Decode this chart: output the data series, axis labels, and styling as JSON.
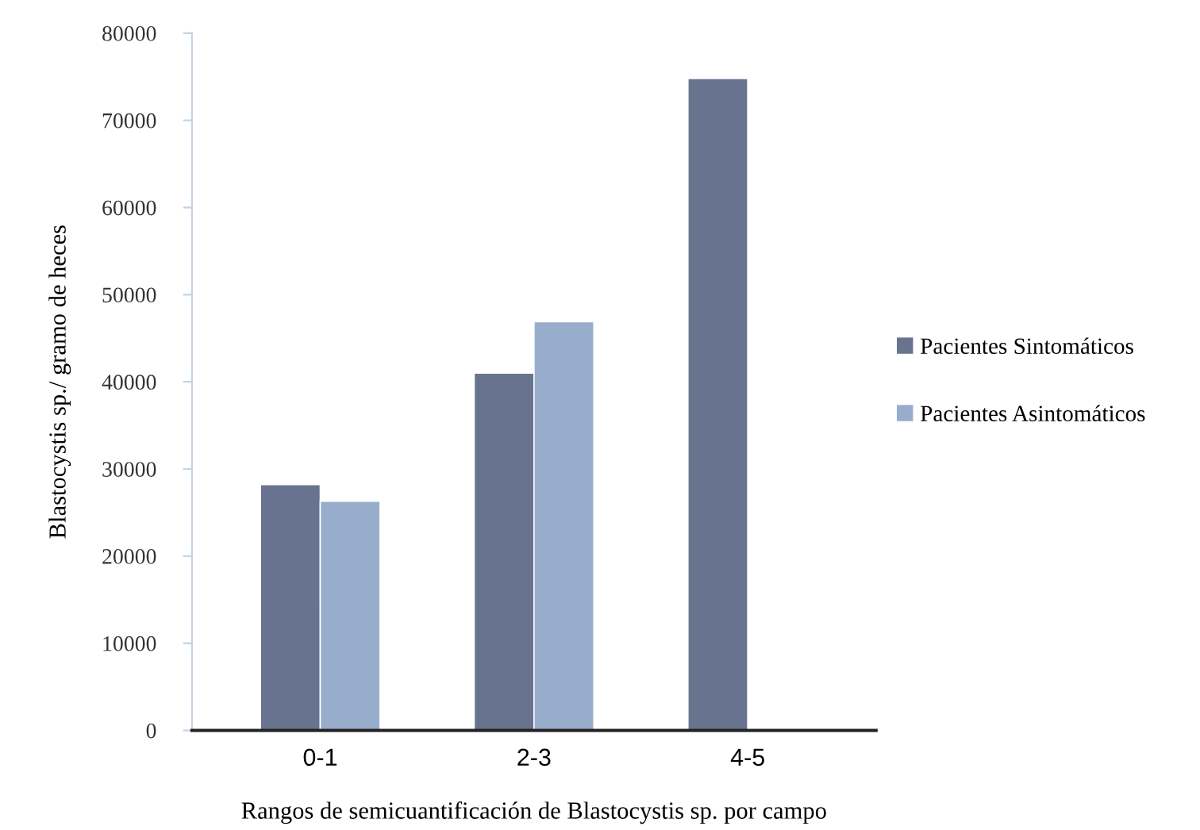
{
  "chart_data": {
    "type": "bar",
    "xlabel": "Rangos de semicuantificación de Blastocystis sp. por campo",
    "ylabel": "Blastocystis sp./ gramo de heces",
    "categories": [
      "0-1",
      "2-3",
      "4-5"
    ],
    "series": [
      {
        "name": "Pacientes Sintomáticos",
        "color": "#68738f",
        "values": [
          28200,
          41000,
          74800
        ]
      },
      {
        "name": "Pacientes Asintomáticos",
        "color": "#98adcb",
        "values": [
          26300,
          46900,
          null
        ]
      }
    ],
    "ylim": [
      0,
      80000
    ],
    "yticks": [
      0,
      10000,
      20000,
      30000,
      40000,
      50000,
      60000,
      70000,
      80000
    ],
    "grid": false,
    "legend": "right"
  }
}
